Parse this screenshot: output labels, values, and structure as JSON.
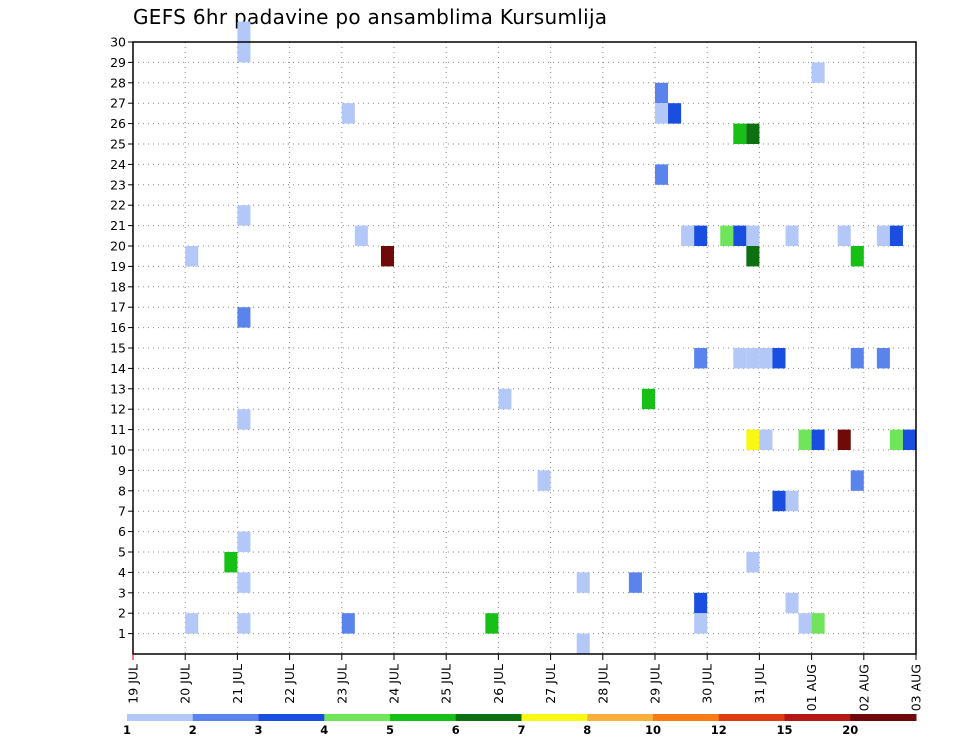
{
  "chart_data": {
    "type": "heatmap",
    "title": "GEFS 6hr padavine po ansamblima Kursumlija",
    "xlabel": "",
    "ylabel": "",
    "x_ticks": [
      "19 JUL",
      "20 JUL",
      "21 JUL",
      "22 JUL",
      "23 JUL",
      "24 JUL",
      "25 JUL",
      "26 JUL",
      "27 JUL",
      "28 JUL",
      "29 JUL",
      "30 JUL",
      "31 JUL",
      "01 AUG",
      "02 AUG",
      "03 AUG"
    ],
    "xlim": [
      0,
      60
    ],
    "y_ticks": [
      1,
      2,
      3,
      4,
      5,
      6,
      7,
      8,
      9,
      10,
      11,
      12,
      13,
      14,
      15,
      16,
      17,
      18,
      19,
      20,
      21,
      22,
      23,
      24,
      25,
      26,
      27,
      28,
      29,
      30
    ],
    "ylim": [
      0,
      30
    ],
    "grid": true,
    "colorbar": {
      "labels": [
        "1",
        "2",
        "3",
        "4",
        "5",
        "6",
        "7",
        "8",
        "10",
        "12",
        "15",
        "20"
      ],
      "colors": [
        "#b4c8f8",
        "#5a84ec",
        "#1a4ee0",
        "#70e45a",
        "#16c016",
        "#0e7010",
        "#f8f814",
        "#f8b03c",
        "#f87c14",
        "#e03c14",
        "#b41814",
        "#700a0a"
      ]
    },
    "cells": [
      {
        "x": 8,
        "y": 29,
        "c": 0
      },
      {
        "x": 8,
        "y": 30,
        "c": 0
      },
      {
        "x": 52,
        "y": 28,
        "c": 0
      },
      {
        "x": 40,
        "y": 27,
        "c": 1
      },
      {
        "x": 16,
        "y": 26,
        "c": 0
      },
      {
        "x": 40,
        "y": 26,
        "c": 0
      },
      {
        "x": 41,
        "y": 26,
        "c": 2
      },
      {
        "x": 46,
        "y": 25,
        "c": 4
      },
      {
        "x": 47,
        "y": 25,
        "c": 5
      },
      {
        "x": 40,
        "y": 23,
        "c": 1
      },
      {
        "x": 8,
        "y": 21,
        "c": 0
      },
      {
        "x": 17,
        "y": 20,
        "c": 0
      },
      {
        "x": 42,
        "y": 20,
        "c": 0
      },
      {
        "x": 43,
        "y": 20,
        "c": 2
      },
      {
        "x": 45,
        "y": 20,
        "c": 3
      },
      {
        "x": 46,
        "y": 20,
        "c": 2
      },
      {
        "x": 47,
        "y": 20,
        "c": 0
      },
      {
        "x": 50,
        "y": 20,
        "c": 0
      },
      {
        "x": 54,
        "y": 20,
        "c": 0
      },
      {
        "x": 57,
        "y": 20,
        "c": 0
      },
      {
        "x": 58,
        "y": 20,
        "c": 2
      },
      {
        "x": 4,
        "y": 19,
        "c": 0
      },
      {
        "x": 19,
        "y": 19,
        "c": 11
      },
      {
        "x": 47,
        "y": 19,
        "c": 5
      },
      {
        "x": 55,
        "y": 19,
        "c": 4
      },
      {
        "x": 8,
        "y": 16,
        "c": 1
      },
      {
        "x": 43,
        "y": 14,
        "c": 1
      },
      {
        "x": 46,
        "y": 14,
        "c": 0
      },
      {
        "x": 47,
        "y": 14,
        "c": 0
      },
      {
        "x": 48,
        "y": 14,
        "c": 0
      },
      {
        "x": 49,
        "y": 14,
        "c": 2
      },
      {
        "x": 55,
        "y": 14,
        "c": 1
      },
      {
        "x": 57,
        "y": 14,
        "c": 1
      },
      {
        "x": 28,
        "y": 12,
        "c": 0
      },
      {
        "x": 39,
        "y": 12,
        "c": 4
      },
      {
        "x": 8,
        "y": 11,
        "c": 0
      },
      {
        "x": 47,
        "y": 10,
        "c": 6
      },
      {
        "x": 48,
        "y": 10,
        "c": 0
      },
      {
        "x": 51,
        "y": 10,
        "c": 3
      },
      {
        "x": 52,
        "y": 10,
        "c": 2
      },
      {
        "x": 54,
        "y": 10,
        "c": 11
      },
      {
        "x": 58,
        "y": 10,
        "c": 3
      },
      {
        "x": 59,
        "y": 10,
        "c": 2
      },
      {
        "x": 31,
        "y": 8,
        "c": 0
      },
      {
        "x": 55,
        "y": 8,
        "c": 1
      },
      {
        "x": 49,
        "y": 7,
        "c": 2
      },
      {
        "x": 50,
        "y": 7,
        "c": 0
      },
      {
        "x": 8,
        "y": 5,
        "c": 0
      },
      {
        "x": 7,
        "y": 4,
        "c": 4
      },
      {
        "x": 47,
        "y": 4,
        "c": 0
      },
      {
        "x": 8,
        "y": 3,
        "c": 0
      },
      {
        "x": 34,
        "y": 3,
        "c": 0
      },
      {
        "x": 38,
        "y": 3,
        "c": 1
      },
      {
        "x": 43,
        "y": 2,
        "c": 2
      },
      {
        "x": 50,
        "y": 2,
        "c": 0
      },
      {
        "x": 4,
        "y": 1,
        "c": 0
      },
      {
        "x": 8,
        "y": 1,
        "c": 0
      },
      {
        "x": 16,
        "y": 1,
        "c": 1
      },
      {
        "x": 27,
        "y": 1,
        "c": 4
      },
      {
        "x": 43,
        "y": 1,
        "c": 0
      },
      {
        "x": 51,
        "y": 1,
        "c": 0
      },
      {
        "x": 52,
        "y": 1,
        "c": 3
      },
      {
        "x": 34,
        "y": 0,
        "c": 0
      }
    ]
  }
}
